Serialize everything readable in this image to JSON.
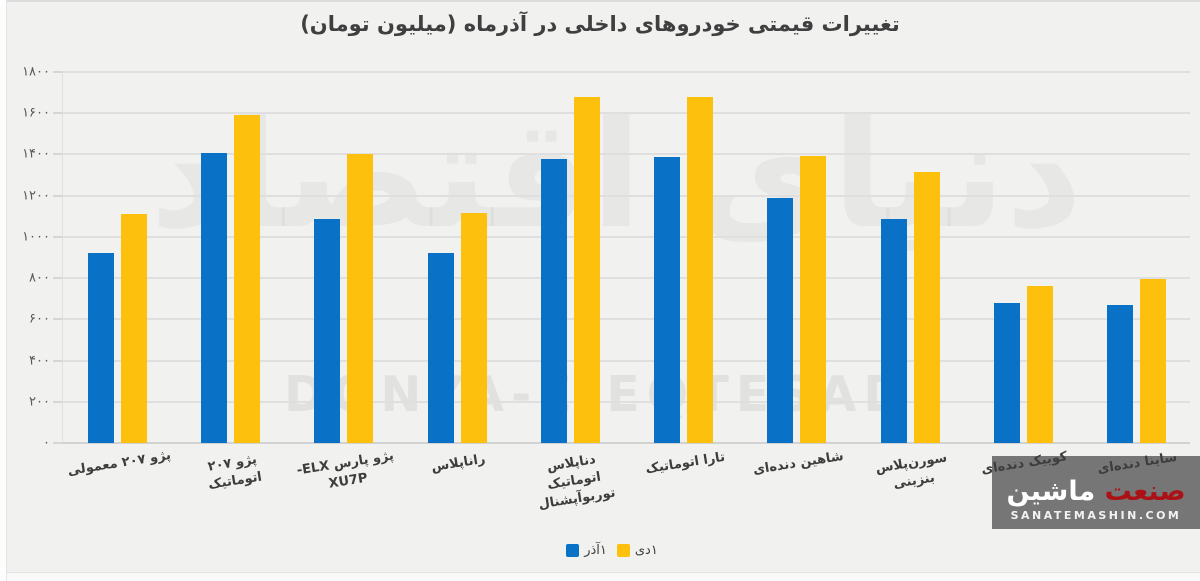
{
  "title_note": "Bar chart image from a Persian news site",
  "legend": {
    "azar": "۱آذر",
    "dey": "۱دی"
  },
  "watermark": {
    "fa": "دنیای اقتصاد",
    "en": "DONYA-E-EQTESAD"
  },
  "logo": {
    "word1": "صنعت",
    "word2": "ماشین",
    "site": "SANATEMASHIN.COM"
  },
  "colors": {
    "background": "#f1f1f0",
    "grid": "#dfdfdf",
    "bar_azar": "#0a72c6",
    "bar_dey": "#fdc00d",
    "logo_bg": "#767676",
    "logo_red": "#ab1115"
  },
  "chart_data": {
    "type": "bar",
    "title": "تغییرات قیمتی خودروهای داخلی در آذرماه (میلیون تومان)",
    "xlabel": "",
    "ylabel": "میلیون تومان",
    "ylim": [
      0,
      1800
    ],
    "grid": "horizontal",
    "legend_position": "bottom-center",
    "y_ticks": {
      "values": [
        0,
        200,
        400,
        600,
        800,
        1000,
        1200,
        1400,
        1600,
        1800
      ],
      "labels_fa": [
        "۰",
        "۲۰۰",
        "۴۰۰",
        "۶۰۰",
        "۸۰۰",
        "۱۰۰۰",
        "۱۲۰۰",
        "۱۴۰۰",
        "۱۶۰۰",
        "۱۸۰۰"
      ]
    },
    "categories": [
      "پژو ۲۰۷ معمولی",
      "پژو ۲۰۷ اتوماتیک",
      "پژو پارس ELX-XU7P",
      "راناپلاس",
      "دناپلاس اتوماتیک توربوآپشنال",
      "تارا اتوماتیک",
      "شاهین دنده‌ای",
      "سورن‌پلاس بنزینی",
      "کوییک دنده‌ای",
      "ساینا دنده‌ای"
    ],
    "category_lines": [
      [
        "پژو ۲۰۷ معمولی"
      ],
      [
        "پژو ۲۰۷",
        "اتوماتیک"
      ],
      [
        "پژو پارس ELX-",
        "XU7P"
      ],
      [
        "راناپلاس"
      ],
      [
        "دناپلاس",
        "اتوماتیک",
        "توربوآپشنال"
      ],
      [
        "تارا اتوماتیک"
      ],
      [
        "شاهین دنده‌ای"
      ],
      [
        "سورن‌پلاس",
        "بنزینی"
      ],
      [
        "کوییک دنده‌ای"
      ],
      [
        "ساینا دنده‌ای"
      ]
    ],
    "series": [
      {
        "name": "۱آذر",
        "color": "#0a72c6",
        "values": [
          920,
          1405,
          1085,
          920,
          1380,
          1390,
          1190,
          1085,
          680,
          670
        ]
      },
      {
        "name": "۱دی",
        "color": "#fdc00d",
        "values": [
          1110,
          1590,
          1400,
          1115,
          1680,
          1680,
          1395,
          1315,
          760,
          795
        ]
      }
    ]
  }
}
